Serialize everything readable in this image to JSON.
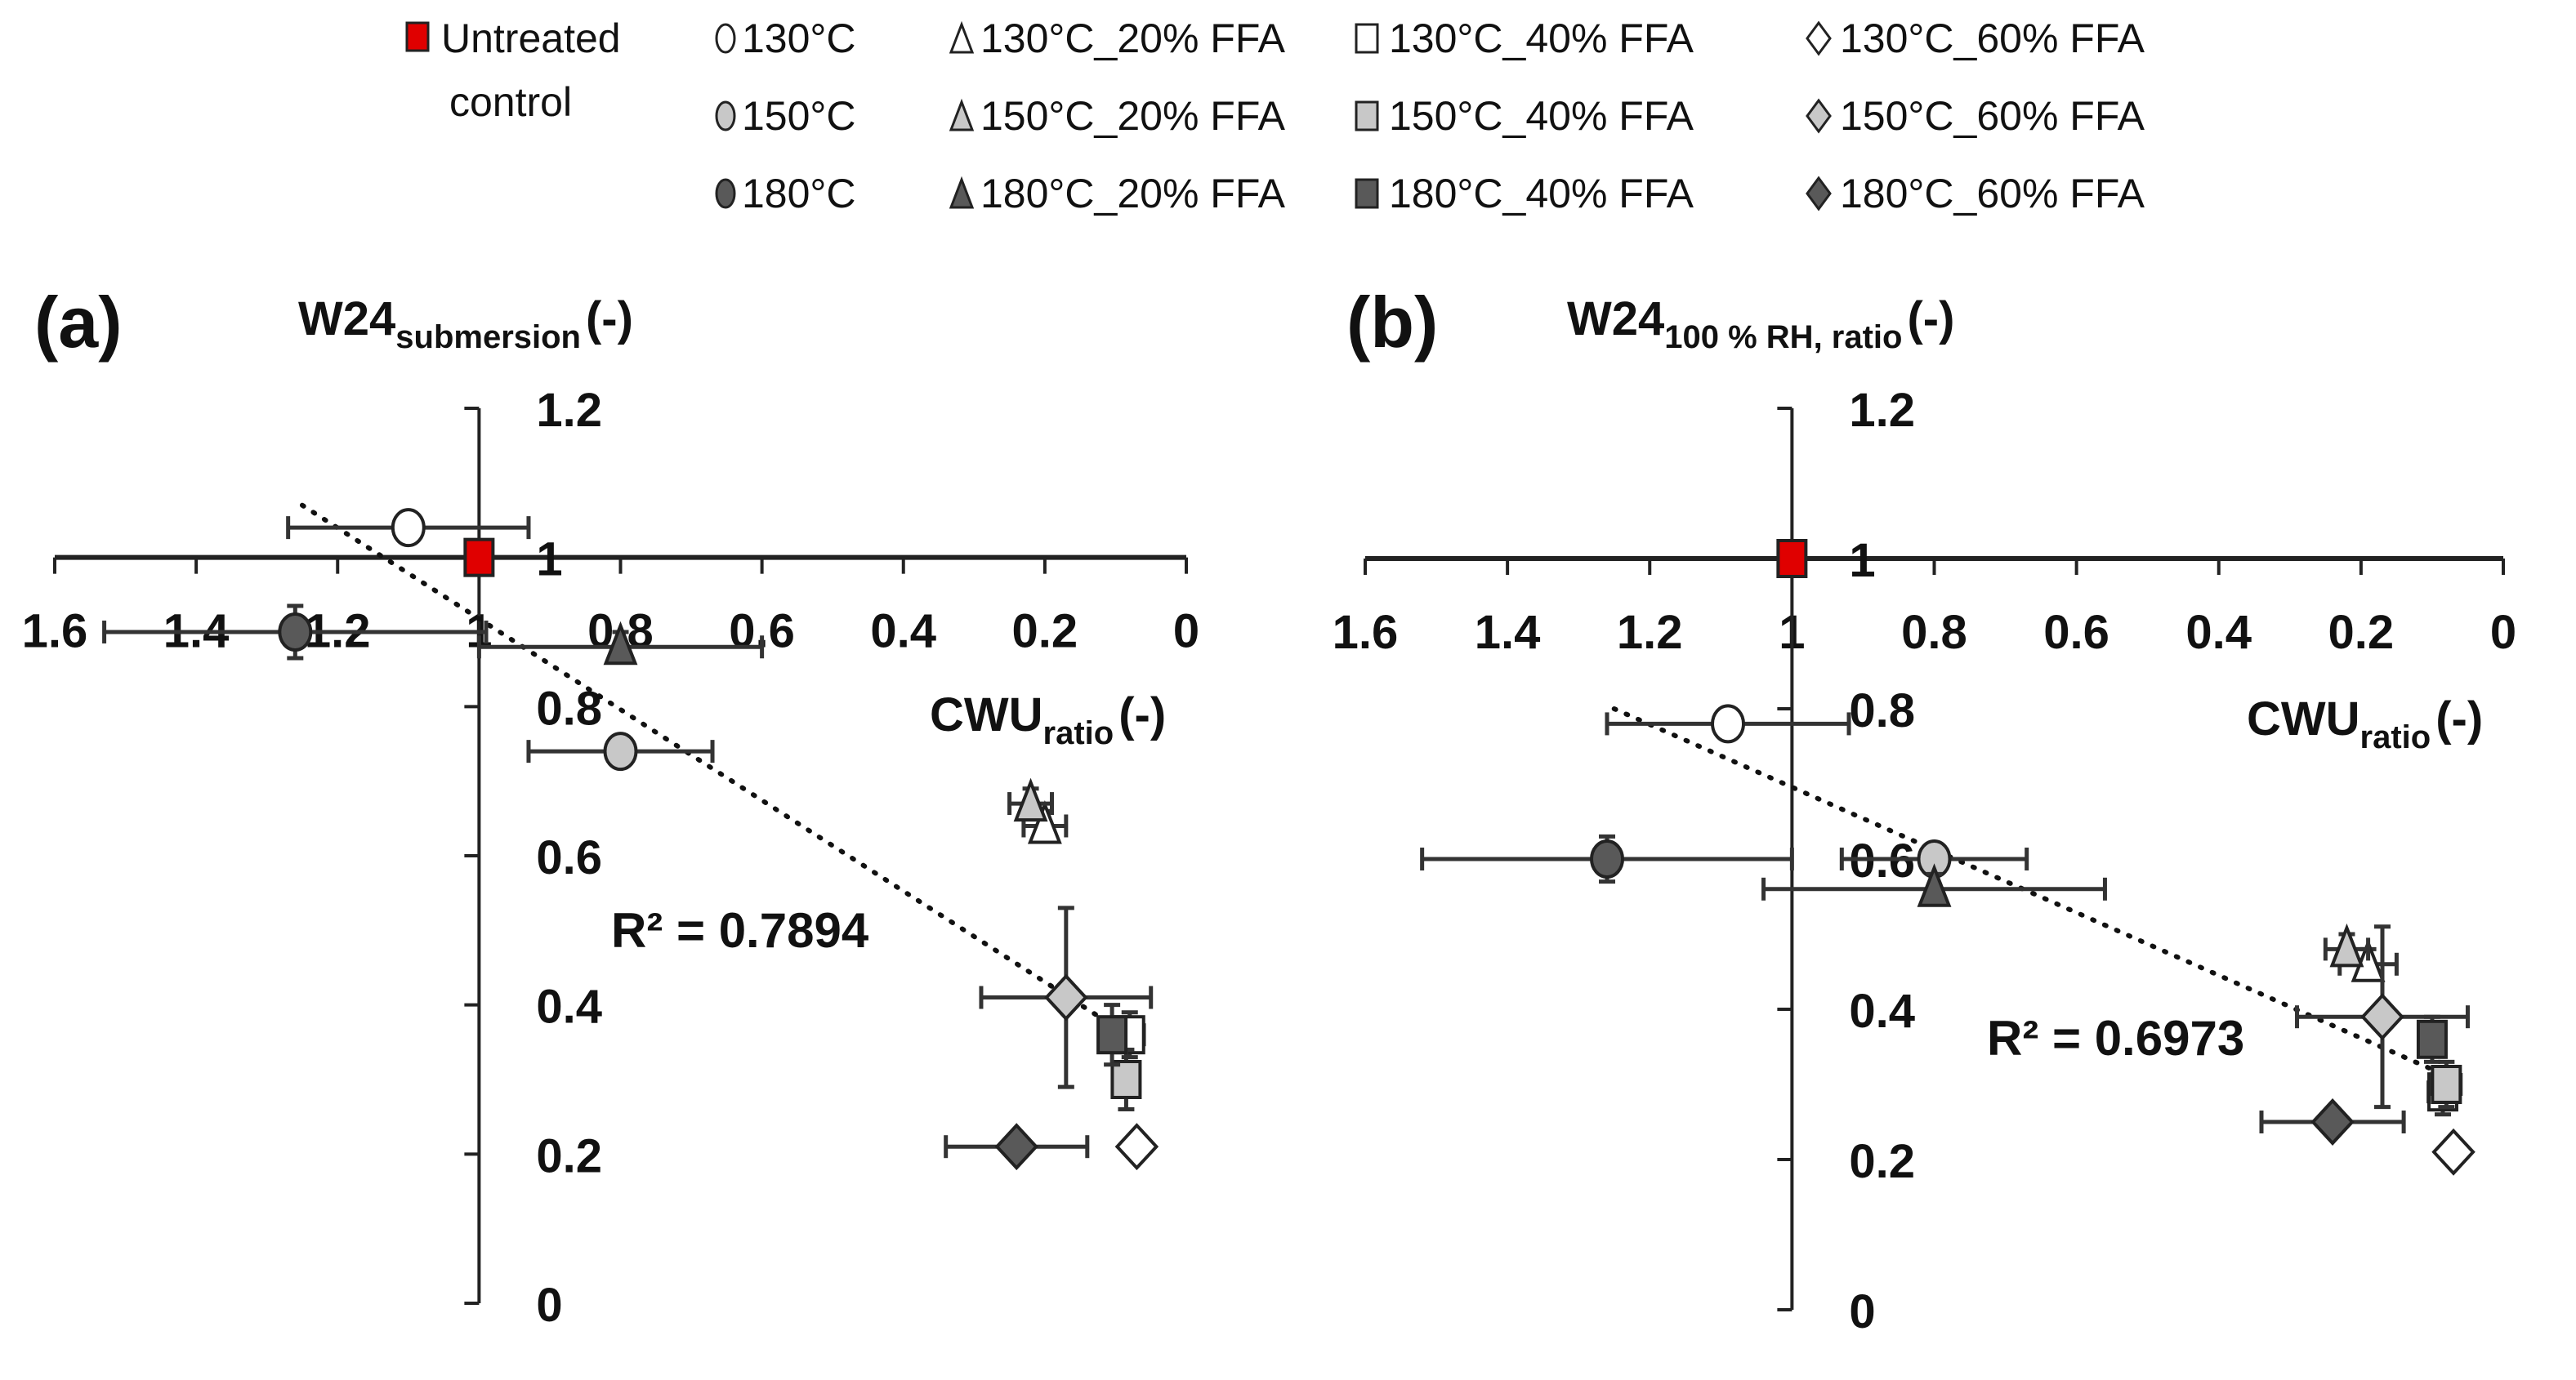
{
  "legend": {
    "items": [
      {
        "label": "Untreated",
        "label2": "control",
        "shape": "square",
        "fill": "#e00000"
      },
      {
        "label": "130°C",
        "shape": "circle",
        "fill": "#ffffff"
      },
      {
        "label": "150°C",
        "shape": "circle",
        "fill": "#c8c8c8"
      },
      {
        "label": "180°C",
        "shape": "circle",
        "fill": "#595959"
      },
      {
        "label": "130°C_20% FFA",
        "shape": "triangle",
        "fill": "#ffffff"
      },
      {
        "label": "150°C_20% FFA",
        "shape": "triangle",
        "fill": "#c8c8c8"
      },
      {
        "label": "180°C_20% FFA",
        "shape": "triangle",
        "fill": "#595959"
      },
      {
        "label": "130°C_40% FFA",
        "shape": "square",
        "fill": "#ffffff"
      },
      {
        "label": "150°C_40% FFA",
        "shape": "square",
        "fill": "#c8c8c8"
      },
      {
        "label": "180°C_40% FFA",
        "shape": "square",
        "fill": "#595959"
      },
      {
        "label": "130°C_60% FFA",
        "shape": "diamond",
        "fill": "#ffffff"
      },
      {
        "label": "150°C_60% FFA",
        "shape": "diamond",
        "fill": "#c8c8c8"
      },
      {
        "label": "180°C_60% FFA",
        "shape": "diamond",
        "fill": "#595959"
      }
    ]
  },
  "colors": {
    "control": "#e00000",
    "t130": "#ffffff",
    "t150": "#c8c8c8",
    "t180": "#595959",
    "axis": "#222222"
  },
  "panels": {
    "a": {
      "label": "(a)",
      "ytitle_main": "W24",
      "ytitle_sub": "submersion",
      "ytitle_unit": "(-)",
      "xtitle_main": "CWU",
      "xtitle_sub": "ratio",
      "xtitle_unit": "(-)",
      "r2": "R² = 0.7894"
    },
    "b": {
      "label": "(b)",
      "ytitle_main": "W24",
      "ytitle_sub": "100 % RH, ratio",
      "ytitle_unit": "(-)",
      "xtitle_main": "CWU",
      "xtitle_sub": "ratio",
      "xtitle_unit": "(-)",
      "r2": "R² = 0.6973"
    }
  },
  "chart_data": [
    {
      "type": "scatter",
      "title": "(a)",
      "xlabel": "CWU_ratio (-)",
      "ylabel": "W24_submersion (-)",
      "xlim": [
        1.6,
        0
      ],
      "x_reversed": true,
      "ylim": [
        0,
        1.2
      ],
      "x_ticks": [
        1.6,
        1.4,
        1.2,
        1,
        0.8,
        0.6,
        0.4,
        0.2,
        0
      ],
      "y_ticks": [
        0,
        0.2,
        0.4,
        0.6,
        0.8,
        1,
        1.2
      ],
      "x_axis_crosses_y_at": 1,
      "y_axis_crosses_x_at": 1,
      "grid": false,
      "legend_position": "top",
      "trendline": {
        "type": "linear",
        "style": "dotted",
        "r2": 0.7894,
        "x_start": 1.25,
        "y_start": 1.07,
        "x_end": 0.1,
        "y_end": 0.37
      },
      "series": [
        {
          "name": "Untreated control",
          "shape": "square",
          "fill": "#e00000",
          "x": 1.0,
          "y": 1.0,
          "xerr": 0.0,
          "yerr": 0.0
        },
        {
          "name": "130°C",
          "shape": "circle",
          "fill": "#ffffff",
          "x": 1.1,
          "y": 1.04,
          "xerr": 0.17,
          "yerr": 0.02
        },
        {
          "name": "150°C",
          "shape": "circle",
          "fill": "#c8c8c8",
          "x": 0.8,
          "y": 0.74,
          "xerr": 0.13,
          "yerr": 0.0
        },
        {
          "name": "180°C",
          "shape": "circle",
          "fill": "#595959",
          "x": 1.26,
          "y": 0.9,
          "xerr": 0.27,
          "yerr": 0.035
        },
        {
          "name": "130°C_20% FFA",
          "shape": "triangle",
          "fill": "#ffffff",
          "x": 0.2,
          "y": 0.64,
          "xerr": 0.03,
          "yerr": 0.02
        },
        {
          "name": "150°C_20% FFA",
          "shape": "triangle",
          "fill": "#c8c8c8",
          "x": 0.22,
          "y": 0.67,
          "xerr": 0.03,
          "yerr": 0.02
        },
        {
          "name": "180°C_20% FFA",
          "shape": "triangle",
          "fill": "#595959",
          "x": 0.8,
          "y": 0.88,
          "xerr": 0.2,
          "yerr": 0.02
        },
        {
          "name": "130°C_40% FFA",
          "shape": "square",
          "fill": "#ffffff",
          "x": 0.08,
          "y": 0.36,
          "xerr": 0.02,
          "yerr": 0.03
        },
        {
          "name": "150°C_40% FFA",
          "shape": "square",
          "fill": "#c8c8c8",
          "x": 0.085,
          "y": 0.3,
          "xerr": 0.01,
          "yerr": 0.04
        },
        {
          "name": "180°C_40% FFA",
          "shape": "square",
          "fill": "#595959",
          "x": 0.105,
          "y": 0.36,
          "xerr": 0.0,
          "yerr": 0.04
        },
        {
          "name": "130°C_60% FFA",
          "shape": "diamond",
          "fill": "#ffffff",
          "x": 0.07,
          "y": 0.21,
          "xerr": 0.0,
          "yerr": 0.0
        },
        {
          "name": "150°C_60% FFA",
          "shape": "diamond",
          "fill": "#c8c8c8",
          "x": 0.17,
          "y": 0.41,
          "xerr": 0.12,
          "yerr": 0.12
        },
        {
          "name": "180°C_60% FFA",
          "shape": "diamond",
          "fill": "#595959",
          "x": 0.24,
          "y": 0.21,
          "xerr": 0.1,
          "yerr": 0.0
        }
      ]
    },
    {
      "type": "scatter",
      "title": "(b)",
      "xlabel": "CWU_ratio (-)",
      "ylabel": "W24_100 % RH, ratio (-)",
      "xlim": [
        1.6,
        0
      ],
      "x_reversed": true,
      "ylim": [
        0,
        1.2
      ],
      "x_ticks": [
        1.6,
        1.4,
        1.2,
        1,
        0.8,
        0.6,
        0.4,
        0.2,
        0
      ],
      "y_ticks": [
        0,
        0.2,
        0.4,
        0.6,
        0.8,
        1,
        1.2
      ],
      "x_axis_crosses_y_at": 1,
      "y_axis_crosses_x_at": 1,
      "grid": false,
      "legend_position": "top",
      "trendline": {
        "type": "linear",
        "style": "dotted",
        "r2": 0.6973,
        "x_start": 1.25,
        "y_start": 0.8,
        "x_end": 0.1,
        "y_end": 0.32
      },
      "series": [
        {
          "name": "Untreated control",
          "shape": "square",
          "fill": "#e00000",
          "x": 1.0,
          "y": 1.0,
          "xerr": 0.0,
          "yerr": 0.0
        },
        {
          "name": "130°C",
          "shape": "circle",
          "fill": "#ffffff",
          "x": 1.09,
          "y": 0.78,
          "xerr": 0.17,
          "yerr": 0.0
        },
        {
          "name": "150°C",
          "shape": "circle",
          "fill": "#c8c8c8",
          "x": 0.8,
          "y": 0.6,
          "xerr": 0.13,
          "yerr": 0.0
        },
        {
          "name": "180°C",
          "shape": "circle",
          "fill": "#595959",
          "x": 1.26,
          "y": 0.6,
          "xerr": 0.26,
          "yerr": 0.03
        },
        {
          "name": "130°C_20% FFA",
          "shape": "triangle",
          "fill": "#ffffff",
          "x": 0.19,
          "y": 0.46,
          "xerr": 0.04,
          "yerr": 0.02
        },
        {
          "name": "150°C_20% FFA",
          "shape": "triangle",
          "fill": "#c8c8c8",
          "x": 0.22,
          "y": 0.48,
          "xerr": 0.03,
          "yerr": 0.02
        },
        {
          "name": "180°C_20% FFA",
          "shape": "triangle",
          "fill": "#595959",
          "x": 0.8,
          "y": 0.56,
          "xerr": 0.24,
          "yerr": 0.02
        },
        {
          "name": "130°C_40% FFA",
          "shape": "square",
          "fill": "#ffffff",
          "x": 0.085,
          "y": 0.29,
          "xerr": 0.02,
          "yerr": 0.03
        },
        {
          "name": "150°C_40% FFA",
          "shape": "square",
          "fill": "#c8c8c8",
          "x": 0.08,
          "y": 0.3,
          "xerr": 0.02,
          "yerr": 0.03
        },
        {
          "name": "180°C_40% FFA",
          "shape": "square",
          "fill": "#595959",
          "x": 0.1,
          "y": 0.36,
          "xerr": 0.0,
          "yerr": 0.03
        },
        {
          "name": "130°C_60% FFA",
          "shape": "diamond",
          "fill": "#ffffff",
          "x": 0.07,
          "y": 0.21,
          "xerr": 0.0,
          "yerr": 0.0
        },
        {
          "name": "150°C_60% FFA",
          "shape": "diamond",
          "fill": "#c8c8c8",
          "x": 0.17,
          "y": 0.39,
          "xerr": 0.12,
          "yerr": 0.12
        },
        {
          "name": "180°C_60% FFA",
          "shape": "diamond",
          "fill": "#595959",
          "x": 0.24,
          "y": 0.25,
          "xerr": 0.1,
          "yerr": 0.0
        }
      ]
    }
  ]
}
